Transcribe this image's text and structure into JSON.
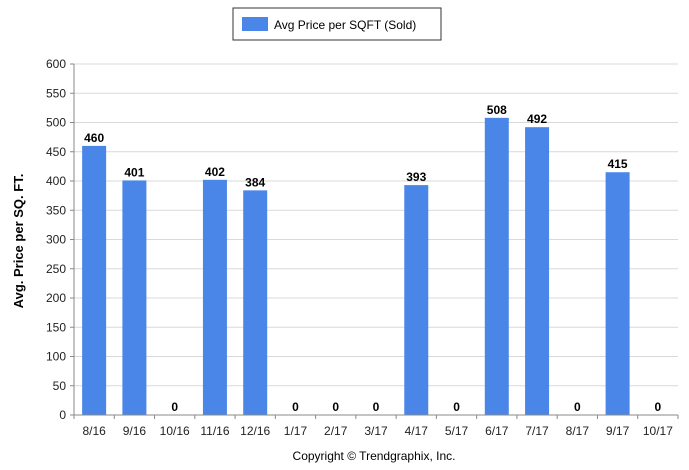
{
  "chart_data": {
    "type": "bar",
    "categories": [
      "8/16",
      "9/16",
      "10/16",
      "11/16",
      "12/16",
      "1/17",
      "2/17",
      "3/17",
      "4/17",
      "5/17",
      "6/17",
      "7/17",
      "8/17",
      "9/17",
      "10/17"
    ],
    "series": [
      {
        "name": "Avg Price per SQFT (Sold)",
        "values": [
          460,
          401,
          0,
          402,
          384,
          0,
          0,
          0,
          393,
          0,
          508,
          492,
          0,
          415,
          0
        ],
        "color": "#4a86e8"
      }
    ],
    "data_labels": [
      "460",
      "401",
      "0",
      "402",
      "384",
      "0",
      "0",
      "0",
      "393",
      "0",
      "508",
      "492",
      "0",
      "415",
      "0"
    ],
    "ylabel": "Avg. Price per SQ. FT.",
    "ylim": [
      0,
      600
    ],
    "yticks": [
      0,
      50,
      100,
      150,
      200,
      250,
      300,
      350,
      400,
      450,
      500,
      550,
      600
    ],
    "grid": true,
    "legend_position": "top-center"
  },
  "legend": {
    "label": "Avg Price per SQFT (Sold)"
  },
  "footer": {
    "text": "Copyright © Trendgraphix, Inc."
  }
}
